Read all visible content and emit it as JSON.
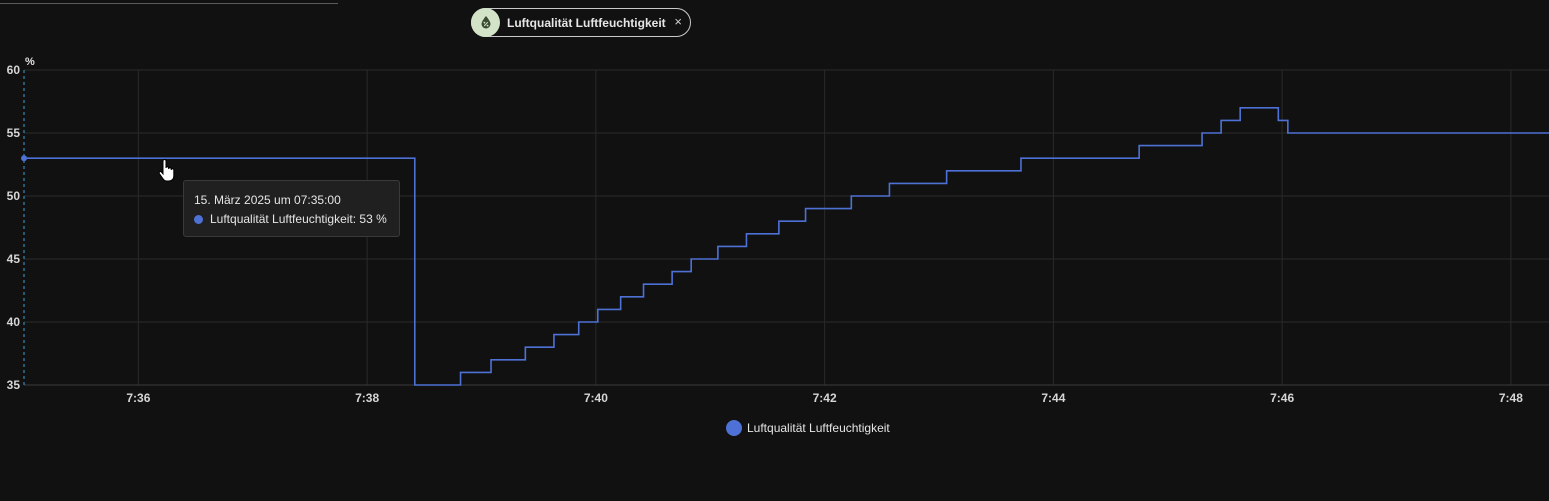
{
  "filter_chip": {
    "label": "Luftqualität Luftfeuchtigkeit",
    "close": "×",
    "icon": "water-drop-percent-icon"
  },
  "tooltip": {
    "title": "15. März 2025 um 07:35:00",
    "series_label": "Luftqualität Luftfeuchtigkeit: 53 %"
  },
  "colors": {
    "series": "#4e71d6",
    "hover_line": "#3aa0d8",
    "grid": "#2a2a2a",
    "background": "#111111"
  },
  "chart_data": {
    "type": "line",
    "step": true,
    "ylabel": "%",
    "ylim": [
      35,
      60
    ],
    "yticks": [
      "35",
      "40",
      "45",
      "50",
      "55",
      "60"
    ],
    "xlim": [
      "7:35",
      "7:48:20"
    ],
    "xticks": [
      "7:36",
      "7:38",
      "7:40",
      "7:42",
      "7:44",
      "7:46",
      "7:48"
    ],
    "grid": true,
    "legend": "bottom-center",
    "series": [
      {
        "name": "Luftqualität Luftfeuchtigkeit",
        "x": [
          "7:35:00",
          "7:38:25",
          "7:38:49",
          "7:39:05",
          "7:39:23",
          "7:39:38",
          "7:39:51",
          "7:40:01",
          "7:40:13",
          "7:40:25",
          "7:40:40",
          "7:40:50",
          "7:41:04",
          "7:41:19",
          "7:41:36",
          "7:41:50",
          "7:42:14",
          "7:42:34",
          "7:43:04",
          "7:43:43",
          "7:44:45",
          "7:45:18",
          "7:45:28",
          "7:45:38",
          "7:45:58",
          "7:46:03",
          "7:48:20"
        ],
        "values": [
          53,
          35,
          36,
          37,
          38,
          39,
          40,
          41,
          42,
          43,
          44,
          45,
          46,
          47,
          48,
          49,
          50,
          51,
          52,
          53,
          54,
          55,
          56,
          57,
          56,
          55,
          55
        ]
      }
    ]
  },
  "legend": {
    "label": "Luftqualität Luftfeuchtigkeit"
  }
}
